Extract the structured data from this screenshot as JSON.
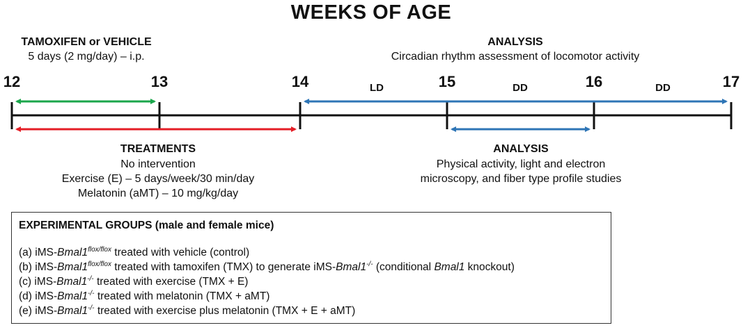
{
  "title": "WEEKS OF AGE",
  "weeks": [
    "12",
    "13",
    "14",
    "15",
    "16",
    "17"
  ],
  "segments": {
    "ld": "LD",
    "dd1": "DD",
    "dd2": "DD"
  },
  "tamoxifen": {
    "heading": "TAMOXIFEN or VEHICLE",
    "detail": "5 days (2 mg/day) – i.p."
  },
  "analysis_top": {
    "heading": "ANALYSIS",
    "detail": "Circadian rhythm assessment of locomotor activity"
  },
  "treatments": {
    "heading": "TREATMENTS",
    "lines": [
      "No intervention",
      "Exercise (E) – 5 days/week/30 min/day",
      "Melatonin (aMT) – 10 mg/kg/day"
    ]
  },
  "analysis_bottom": {
    "heading": "ANALYSIS",
    "lines": [
      "Physical activity, light and electron",
      "microscopy, and  fiber type profile studies"
    ]
  },
  "groups": {
    "title": "EXPERIMENTAL GROUPS (male and female mice)",
    "gene": "Bmal1",
    "flox_sup": "flox/flox",
    "ko_sup": "-/-",
    "prefix": "iMS-",
    "items": [
      {
        "label": "(a)",
        "genotype": "flox",
        "text": " treated with vehicle  (control)"
      },
      {
        "label": "(b)",
        "genotype": "flox",
        "text": "  treated with tamoxifen  (TMX) to generate iMS-",
        "ko_tail": true,
        "tail_text": " (conditional  ",
        "tail_gene": "Bmal1",
        "tail_end": " knockout)"
      },
      {
        "label": "(c)",
        "genotype": "ko",
        "text": " treated with exercise  (TMX + E)"
      },
      {
        "label": "(d)",
        "genotype": "ko",
        "text": " treated with melatonin  (TMX + aMT)"
      },
      {
        "label": "(e)",
        "genotype": "ko",
        "text": " treated with exercise plus melatonin  (TMX + E + aMT)"
      }
    ]
  },
  "colors": {
    "axis": "#111111",
    "tamoxifen_arrow": "#1aa64b",
    "treatment_arrow": "#e41e26",
    "analysis_arrow": "#2e75b6"
  }
}
